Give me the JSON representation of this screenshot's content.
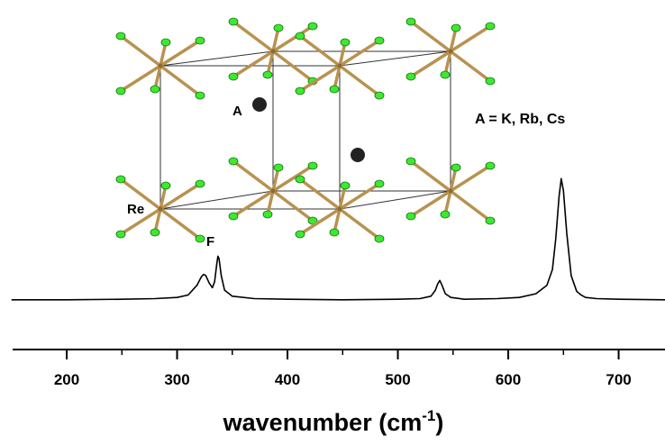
{
  "chart_data": {
    "type": "line",
    "x": [
      150,
      200,
      250,
      280,
      300,
      310,
      318,
      322,
      324,
      326,
      329,
      332,
      334,
      336,
      337,
      338,
      340,
      343,
      350,
      370,
      400,
      450,
      500,
      520,
      530,
      534,
      536,
      538,
      540,
      543,
      548,
      560,
      590,
      610,
      625,
      635,
      640,
      643,
      646,
      648,
      650,
      653,
      657,
      662,
      666,
      668,
      670,
      680,
      700,
      742
    ],
    "values": [
      0,
      0,
      0.005,
      0.01,
      0.02,
      0.04,
      0.12,
      0.19,
      0.21,
      0.2,
      0.14,
      0.1,
      0.15,
      0.3,
      0.36,
      0.34,
      0.2,
      0.08,
      0.03,
      0.01,
      0.005,
      0,
      0.005,
      0.01,
      0.03,
      0.08,
      0.13,
      0.16,
      0.12,
      0.05,
      0.02,
      0.005,
      0.01,
      0.02,
      0.05,
      0.12,
      0.25,
      0.5,
      0.85,
      1,
      0.9,
      0.55,
      0.2,
      0.07,
      0.04,
      0.03,
      0.02,
      0.01,
      0.005,
      0
    ],
    "color": "#000000",
    "xlim": [
      151,
      742
    ],
    "ylim": [
      -0.12,
      2.4
    ],
    "xticks": [
      200,
      300,
      400,
      500,
      600,
      700
    ],
    "xminorticks": [
      250,
      350,
      450,
      550,
      650
    ],
    "xlabel_parts": [
      "wavenumber (cm",
      "-1",
      ")"
    ],
    "annotations": [
      "A",
      "Re",
      "F",
      "A = K, Rb, Cs"
    ]
  }
}
